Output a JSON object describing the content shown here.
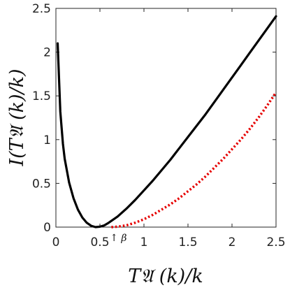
{
  "chart_data": {
    "type": "line",
    "xlabel": "T𝔄 (k)/k",
    "ylabel": "I(T𝔄 (k)/k)",
    "xlim": [
      0,
      2.5
    ],
    "ylim": [
      0,
      2.5
    ],
    "x_ticks": [
      "0",
      "0.5",
      "1",
      "1.5",
      "2",
      "2.5"
    ],
    "y_ticks": [
      "0",
      "0.5",
      "1",
      "1.5",
      "2",
      "2.5"
    ],
    "grid": false,
    "annotation": {
      "text": "↑ β",
      "x": 0.63,
      "y": 0
    },
    "series": [
      {
        "style": "solid",
        "color": "#000000",
        "x": [
          0.02,
          0.05,
          0.08,
          0.1,
          0.15,
          0.2,
          0.25,
          0.3,
          0.35,
          0.4,
          0.45,
          0.5,
          0.55,
          0.6,
          0.7,
          0.8,
          0.9,
          1.0,
          1.1,
          1.2,
          1.3,
          1.4,
          1.5,
          1.6,
          1.7,
          1.8,
          1.9,
          2.0,
          2.1,
          2.2,
          2.3,
          2.4,
          2.5
        ],
        "y": [
          2.1,
          1.32,
          0.95,
          0.78,
          0.51,
          0.33,
          0.2,
          0.11,
          0.05,
          0.015,
          0.0,
          0.005,
          0.02,
          0.05,
          0.12,
          0.21,
          0.31,
          0.42,
          0.53,
          0.65,
          0.77,
          0.9,
          1.03,
          1.16,
          1.29,
          1.43,
          1.57,
          1.71,
          1.85,
          1.99,
          2.13,
          2.27,
          2.41
        ]
      },
      {
        "style": "dotted",
        "color": "#e60000",
        "x": [
          0.63,
          0.7,
          0.8,
          0.9,
          1.0,
          1.1,
          1.2,
          1.3,
          1.4,
          1.5,
          1.6,
          1.7,
          1.8,
          1.9,
          2.0,
          2.1,
          2.2,
          2.3,
          2.4,
          2.5
        ],
        "y": [
          0.0,
          0.005,
          0.02,
          0.05,
          0.09,
          0.14,
          0.2,
          0.26,
          0.33,
          0.41,
          0.49,
          0.58,
          0.68,
          0.78,
          0.89,
          1.0,
          1.12,
          1.25,
          1.39,
          1.54
        ]
      }
    ]
  }
}
